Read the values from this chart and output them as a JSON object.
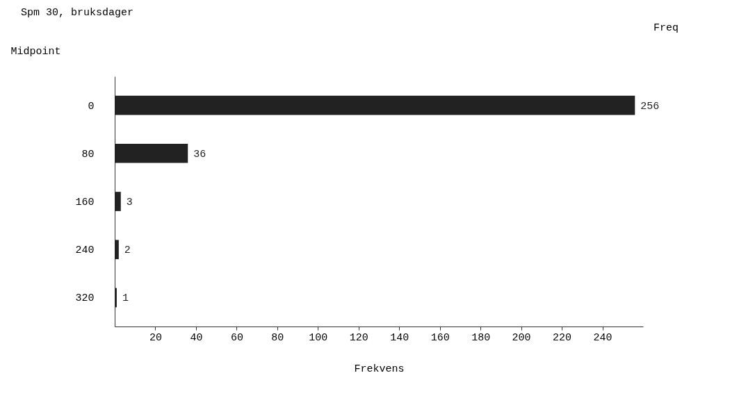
{
  "chart_data": {
    "type": "bar",
    "orientation": "horizontal",
    "title": "Spm 30, bruksdager",
    "ylabel": "Midpoint",
    "xlabel": "Frekvens",
    "categories": [
      "0",
      "80",
      "160",
      "240",
      "320"
    ],
    "values": [
      256,
      36,
      3,
      2,
      1
    ],
    "color": "#222222",
    "data_labels": true,
    "annotations": [
      "Freq"
    ],
    "xlim": [
      0,
      260
    ],
    "xticks": [
      20,
      40,
      60,
      80,
      100,
      120,
      140,
      160,
      180,
      200,
      220,
      240
    ],
    "grid": false
  }
}
